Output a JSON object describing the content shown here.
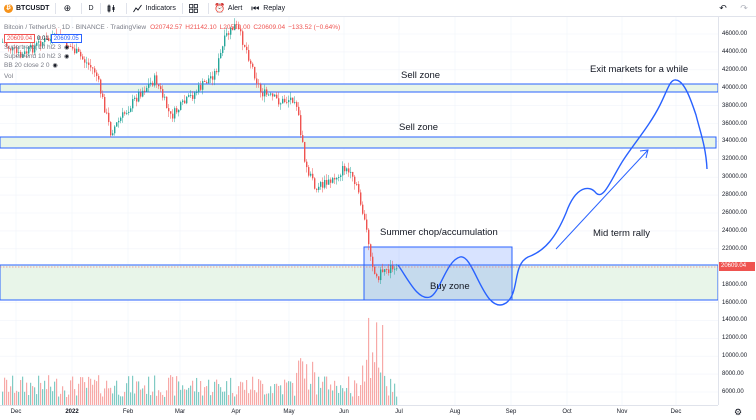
{
  "toolbar": {
    "symbol_badge": "₿",
    "symbol": "BTCUSDT",
    "add_icon": "plus-circle-icon",
    "interval": "D",
    "indicators_label": "Indicators",
    "alert_label": "Alert",
    "replay_label": "Replay"
  },
  "legend": {
    "title": "Bitcoin / TetherUS · 1D · BINANCE · TradingView",
    "open": "O20742.57",
    "high": "H21142.10",
    "low": "L20510.00",
    "close": "C20609.04",
    "change": "−133.52 (−0.64%)",
    "bid": "20609.04",
    "spread": "0.01",
    "ask": "20609.05",
    "indicators": [
      "Supertrend 10 hl2 3",
      "Supertrend 10 hl2 3",
      "BB 20 close 2 0"
    ],
    "vol": "Vol"
  },
  "price_axis": {
    "ticks": [
      "46000.00",
      "44000.00",
      "42000.00",
      "40000.00",
      "38000.00",
      "36000.00",
      "34000.00",
      "32000.00",
      "30000.00",
      "28000.00",
      "26000.00",
      "24000.00",
      "22000.00",
      "20000.00",
      "18000.00",
      "16000.00",
      "14000.00",
      "12000.00",
      "10000.00",
      "8000.00",
      "6000.00"
    ]
  },
  "time_axis": {
    "ticks": [
      "Dec",
      "2022",
      "Feb",
      "Mar",
      "Apr",
      "May",
      "Jun",
      "Jul",
      "Aug",
      "Sep",
      "Oct",
      "Nov",
      "Dec"
    ]
  },
  "annotations": {
    "sell_zone_1": "Sell zone",
    "sell_zone_2": "Sell zone",
    "exit": "Exit markets for a while",
    "chop": "Summer chop/accumulation",
    "mid_rally": "Mid term rally",
    "buy_zone": "Buy zone"
  },
  "colors": {
    "up": "#26a69a",
    "down": "#ef5350",
    "zone_border": "#2962ff",
    "zone_fill": "#e8f5e9",
    "drawing": "#2962ff",
    "vol_up": "#80cbc4",
    "vol_down": "#f7a9a7"
  }
}
